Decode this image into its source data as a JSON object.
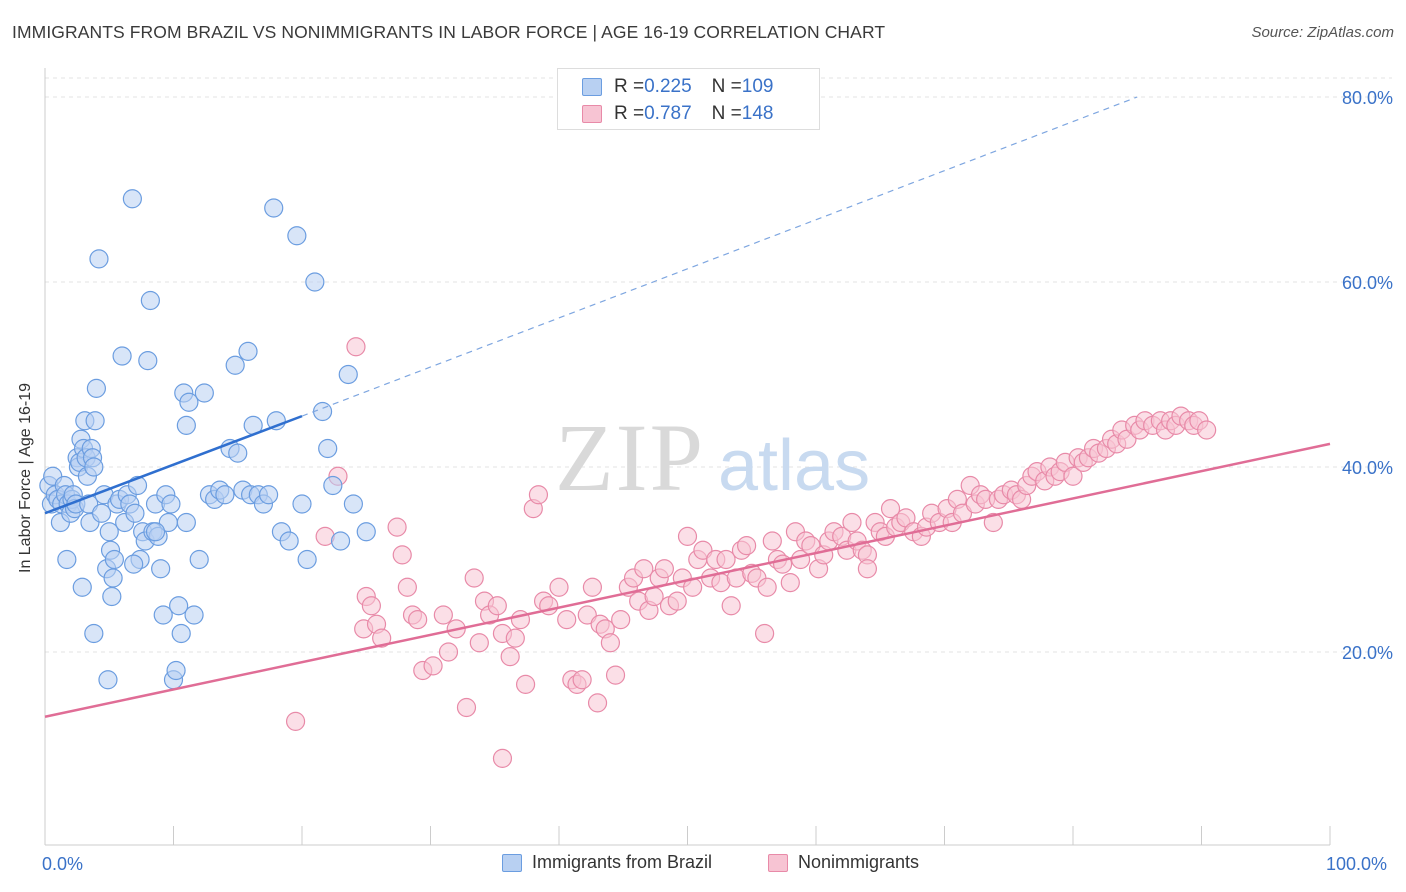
{
  "title": "IMMIGRANTS FROM BRAZIL VS NONIMMIGRANTS IN LABOR FORCE | AGE 16-19 CORRELATION CHART",
  "source": "Source: ZipAtlas.com",
  "watermark": {
    "zip": "ZIP",
    "atlas": "atlas"
  },
  "legend": {
    "rows": [
      {
        "r_label": "R = ",
        "r_value": "0.225",
        "n_label": "N = ",
        "n_value": "109"
      },
      {
        "r_label": "R = ",
        "r_value": "0.787",
        "n_label": "N = ",
        "n_value": "148"
      }
    ]
  },
  "chart_data": {
    "type": "scatter",
    "title": "IMMIGRANTS FROM BRAZIL VS NONIMMIGRANTS IN LABOR FORCE | AGE 16-19 CORRELATION CHART",
    "xlabel": "",
    "ylabel": "In Labor Force | Age 16-19",
    "xlim": [
      0,
      100
    ],
    "ylim": [
      0,
      85
    ],
    "x_tick_labels": [
      "0.0%",
      "100.0%"
    ],
    "y_ticks": [
      20,
      40,
      60,
      80
    ],
    "y_tick_labels": [
      "20.0%",
      "40.0%",
      "60.0%",
      "80.0%"
    ],
    "grid": true,
    "legend_position": "top-center",
    "series": [
      {
        "name": "Immigrants from Brazil",
        "color": "#6b9de0",
        "fill": "#b8d0f2",
        "r": 0.225,
        "n": 109,
        "trend": {
          "x0": 0,
          "y0": 35.0,
          "x1": 20,
          "y1": 45.5,
          "dashed_to_x": 85,
          "dashed_to_y": 80
        },
        "points": [
          [
            0.3,
            38
          ],
          [
            0.5,
            36
          ],
          [
            0.6,
            39
          ],
          [
            0.8,
            37
          ],
          [
            1,
            36.5
          ],
          [
            1.2,
            34
          ],
          [
            1.3,
            36
          ],
          [
            1.5,
            38
          ],
          [
            1.6,
            37
          ],
          [
            1.8,
            36
          ],
          [
            2,
            35
          ],
          [
            2.1,
            36.5
          ],
          [
            2.2,
            37
          ],
          [
            2.3,
            35.5
          ],
          [
            2.4,
            36
          ],
          [
            2.5,
            41
          ],
          [
            2.6,
            40
          ],
          [
            2.7,
            40.5
          ],
          [
            2.8,
            43
          ],
          [
            3,
            42
          ],
          [
            3.1,
            45
          ],
          [
            3.2,
            41
          ],
          [
            3.3,
            39
          ],
          [
            3.4,
            36
          ],
          [
            3.5,
            34
          ],
          [
            3.6,
            42
          ],
          [
            3.7,
            41
          ],
          [
            3.8,
            40
          ],
          [
            3.9,
            45
          ],
          [
            4,
            48.5
          ],
          [
            4.2,
            62.5
          ],
          [
            4.4,
            35
          ],
          [
            4.6,
            37
          ],
          [
            4.8,
            29
          ],
          [
            5,
            33
          ],
          [
            5.1,
            31
          ],
          [
            5.2,
            26
          ],
          [
            5.3,
            28
          ],
          [
            5.4,
            30
          ],
          [
            5.6,
            36
          ],
          [
            5.8,
            36.5
          ],
          [
            6,
            52
          ],
          [
            6.2,
            34
          ],
          [
            6.4,
            37
          ],
          [
            6.6,
            36
          ],
          [
            6.8,
            69
          ],
          [
            7,
            35
          ],
          [
            7.2,
            38
          ],
          [
            7.4,
            30
          ],
          [
            7.6,
            33
          ],
          [
            7.8,
            32
          ],
          [
            8,
            51.5
          ],
          [
            8.2,
            58
          ],
          [
            8.4,
            33
          ],
          [
            8.6,
            36
          ],
          [
            8.8,
            32.5
          ],
          [
            9,
            29
          ],
          [
            9.2,
            24
          ],
          [
            9.4,
            37
          ],
          [
            9.6,
            34
          ],
          [
            9.8,
            36
          ],
          [
            10,
            17
          ],
          [
            10.2,
            18
          ],
          [
            10.4,
            25
          ],
          [
            10.6,
            22
          ],
          [
            10.8,
            48
          ],
          [
            11,
            44.5
          ],
          [
            11.2,
            47
          ],
          [
            11.6,
            24
          ],
          [
            12,
            30
          ],
          [
            12.4,
            48
          ],
          [
            12.8,
            37
          ],
          [
            13.2,
            36.5
          ],
          [
            13.6,
            37.5
          ],
          [
            14,
            37
          ],
          [
            14.4,
            42
          ],
          [
            14.8,
            51
          ],
          [
            15,
            41.5
          ],
          [
            15.4,
            37.5
          ],
          [
            15.8,
            52.5
          ],
          [
            16,
            37
          ],
          [
            16.2,
            44.5
          ],
          [
            16.6,
            37
          ],
          [
            17,
            36
          ],
          [
            17.4,
            37
          ],
          [
            17.8,
            68
          ],
          [
            18,
            45
          ],
          [
            18.4,
            33
          ],
          [
            19,
            32
          ],
          [
            19.6,
            65
          ],
          [
            20,
            36
          ],
          [
            20.4,
            30
          ],
          [
            21,
            60
          ],
          [
            21.6,
            46
          ],
          [
            22,
            42
          ],
          [
            22.4,
            38
          ],
          [
            23,
            32
          ],
          [
            23.6,
            50
          ],
          [
            24,
            36
          ],
          [
            25,
            33
          ],
          [
            1.7,
            30
          ],
          [
            2.9,
            27
          ],
          [
            3.8,
            22
          ],
          [
            4.9,
            17
          ],
          [
            6.9,
            29.5
          ],
          [
            8.6,
            33
          ],
          [
            11,
            34
          ]
        ]
      },
      {
        "name": "Nonimmigrants",
        "color": "#e88aa8",
        "fill": "#f7c4d3",
        "r": 0.787,
        "n": 148,
        "trend": {
          "x0": 0,
          "y0": 13.0,
          "x1": 100,
          "y1": 42.5
        },
        "points": [
          [
            19.5,
            12.5
          ],
          [
            21.8,
            32.5
          ],
          [
            22.8,
            39
          ],
          [
            24.2,
            53
          ],
          [
            24.8,
            22.5
          ],
          [
            25,
            26
          ],
          [
            25.4,
            25
          ],
          [
            25.8,
            23
          ],
          [
            26.2,
            21.5
          ],
          [
            27.4,
            33.5
          ],
          [
            27.8,
            30.5
          ],
          [
            28.2,
            27
          ],
          [
            28.6,
            24
          ],
          [
            29,
            23.5
          ],
          [
            29.4,
            18
          ],
          [
            30.2,
            18.5
          ],
          [
            31,
            24
          ],
          [
            31.4,
            20
          ],
          [
            32,
            22.5
          ],
          [
            32.8,
            14
          ],
          [
            33.4,
            28
          ],
          [
            33.8,
            21
          ],
          [
            34.2,
            25.5
          ],
          [
            34.6,
            24
          ],
          [
            35.2,
            25
          ],
          [
            35.6,
            22
          ],
          [
            36.2,
            19.5
          ],
          [
            36.6,
            21.5
          ],
          [
            37,
            23.5
          ],
          [
            37.4,
            16.5
          ],
          [
            38,
            35.5
          ],
          [
            38.4,
            37
          ],
          [
            38.8,
            25.5
          ],
          [
            39.2,
            25
          ],
          [
            40,
            27
          ],
          [
            40.6,
            23.5
          ],
          [
            41,
            17
          ],
          [
            41.4,
            16.5
          ],
          [
            41.8,
            17
          ],
          [
            42.2,
            24
          ],
          [
            42.6,
            27
          ],
          [
            43.2,
            23
          ],
          [
            43.6,
            22.5
          ],
          [
            44,
            21
          ],
          [
            44.4,
            17.5
          ],
          [
            44.8,
            23.5
          ],
          [
            45.4,
            27
          ],
          [
            45.8,
            28
          ],
          [
            46.2,
            25.5
          ],
          [
            46.6,
            29
          ],
          [
            47,
            24.5
          ],
          [
            47.4,
            26
          ],
          [
            47.8,
            28
          ],
          [
            48.2,
            29
          ],
          [
            48.6,
            25
          ],
          [
            49.2,
            25.5
          ],
          [
            49.6,
            28
          ],
          [
            50,
            32.5
          ],
          [
            50.4,
            27
          ],
          [
            50.8,
            30
          ],
          [
            51.2,
            31
          ],
          [
            51.8,
            28
          ],
          [
            52.2,
            30
          ],
          [
            52.6,
            27.5
          ],
          [
            53,
            30
          ],
          [
            53.4,
            25
          ],
          [
            53.8,
            28
          ],
          [
            54.2,
            31
          ],
          [
            54.6,
            31.5
          ],
          [
            55,
            28.5
          ],
          [
            55.4,
            28
          ],
          [
            56.2,
            27
          ],
          [
            56.6,
            32
          ],
          [
            57,
            30
          ],
          [
            57.4,
            29.5
          ],
          [
            58,
            27.5
          ],
          [
            58.4,
            33
          ],
          [
            58.8,
            30
          ],
          [
            59.2,
            32
          ],
          [
            59.6,
            31.5
          ],
          [
            60.2,
            29
          ],
          [
            60.6,
            30.5
          ],
          [
            61,
            32
          ],
          [
            61.4,
            33
          ],
          [
            62,
            32.5
          ],
          [
            62.4,
            31
          ],
          [
            62.8,
            34
          ],
          [
            63.2,
            32
          ],
          [
            63.6,
            31
          ],
          [
            64,
            30.5
          ],
          [
            64.6,
            34
          ],
          [
            65,
            33
          ],
          [
            65.4,
            32.5
          ],
          [
            65.8,
            35.5
          ],
          [
            66.2,
            33.5
          ],
          [
            66.6,
            34
          ],
          [
            67,
            34.5
          ],
          [
            67.6,
            33
          ],
          [
            68.2,
            32.5
          ],
          [
            68.6,
            33.5
          ],
          [
            69,
            35
          ],
          [
            69.6,
            34
          ],
          [
            70.2,
            35.5
          ],
          [
            70.6,
            34
          ],
          [
            71,
            36.5
          ],
          [
            71.4,
            35
          ],
          [
            72,
            38
          ],
          [
            72.4,
            36
          ],
          [
            72.8,
            37
          ],
          [
            73.2,
            36.5
          ],
          [
            73.8,
            34
          ],
          [
            74.2,
            36.5
          ],
          [
            74.6,
            37
          ],
          [
            75.2,
            37.5
          ],
          [
            75.6,
            37
          ],
          [
            76,
            36.5
          ],
          [
            76.4,
            38
          ],
          [
            76.8,
            39
          ],
          [
            77.2,
            39.5
          ],
          [
            77.8,
            38.5
          ],
          [
            78.2,
            40
          ],
          [
            78.6,
            39
          ],
          [
            79,
            39.5
          ],
          [
            79.4,
            40.5
          ],
          [
            80,
            39
          ],
          [
            80.4,
            41
          ],
          [
            80.8,
            40.5
          ],
          [
            81.2,
            41
          ],
          [
            81.6,
            42
          ],
          [
            82,
            41.5
          ],
          [
            82.6,
            42
          ],
          [
            83,
            43
          ],
          [
            83.4,
            42.5
          ],
          [
            83.8,
            44
          ],
          [
            84.2,
            43
          ],
          [
            84.8,
            44.5
          ],
          [
            85.2,
            44
          ],
          [
            85.6,
            45
          ],
          [
            86.2,
            44.5
          ],
          [
            86.8,
            45
          ],
          [
            87.2,
            44
          ],
          [
            87.6,
            45
          ],
          [
            88,
            44.5
          ],
          [
            88.4,
            45.5
          ],
          [
            89,
            45
          ],
          [
            89.4,
            44.5
          ],
          [
            89.8,
            45
          ],
          [
            90.4,
            44
          ],
          [
            56,
            22
          ],
          [
            35.6,
            8.5
          ],
          [
            43,
            14.5
          ],
          [
            64,
            29
          ]
        ]
      }
    ]
  },
  "bottom_legend": [
    {
      "label": "Immigrants from Brazil"
    },
    {
      "label": "Nonimmigrants"
    }
  ],
  "axis": {
    "ylabel": "In Labor Force | Age 16-19",
    "x_left": "0.0%",
    "x_right": "100.0%"
  }
}
